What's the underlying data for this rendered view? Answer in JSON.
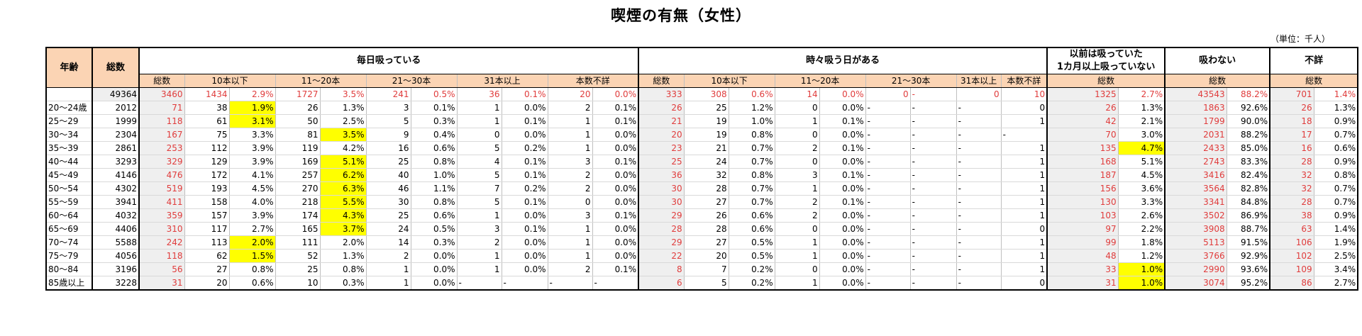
{
  "title": "喫煙の有無（女性）",
  "unit": "（単位：千人）",
  "headers": {
    "age": "年齢",
    "total": "総数",
    "daily": "毎日吸っている",
    "sometimes": "時々吸う日がある",
    "former_line1": "以前は吸っていた",
    "former_line2": "1カ月以上吸っていない",
    "never": "吸わない",
    "unknown": "不詳",
    "sub_total": "総数",
    "s_le10": "10本以下",
    "s_11_20": "11～20本",
    "s_21_30": "21～30本",
    "s_31": "31本以上",
    "s_unk": "本数不詳"
  },
  "rows": [
    {
      "age": "",
      "cells": [
        "49364",
        "3460",
        "1434",
        "2.9%",
        "1727",
        "3.5%",
        "241",
        "0.5%",
        "36",
        "0.1%",
        "20",
        "0.0%",
        "333",
        "308",
        "0.6%",
        "14",
        "0.0%",
        "0",
        "-",
        "0",
        "10",
        "1325",
        "2.7%",
        "43543",
        "88.2%",
        "701",
        "1.4%"
      ],
      "hl": []
    },
    {
      "age": "20～24歳",
      "cells": [
        "2012",
        "71",
        "38",
        "1.9%",
        "26",
        "1.3%",
        "3",
        "0.1%",
        "1",
        "0.0%",
        "2",
        "0.1%",
        "26",
        "25",
        "1.2%",
        "0",
        "0.0%",
        "-",
        "-",
        "-",
        "0",
        "26",
        "1.3%",
        "1863",
        "92.6%",
        "26",
        "1.3%"
      ],
      "hl": [
        3
      ]
    },
    {
      "age": "25～29",
      "cells": [
        "1999",
        "118",
        "61",
        "3.1%",
        "50",
        "2.5%",
        "5",
        "0.3%",
        "1",
        "0.1%",
        "1",
        "0.1%",
        "21",
        "19",
        "1.0%",
        "1",
        "0.1%",
        "-",
        "-",
        "-",
        "1",
        "42",
        "2.1%",
        "1799",
        "90.0%",
        "18",
        "0.9%"
      ],
      "hl": [
        3
      ]
    },
    {
      "age": "30～34",
      "cells": [
        "2304",
        "167",
        "75",
        "3.3%",
        "81",
        "3.5%",
        "9",
        "0.4%",
        "0",
        "0.0%",
        "1",
        "0.0%",
        "20",
        "19",
        "0.8%",
        "0",
        "0.0%",
        "-",
        "-",
        "-",
        "-",
        "70",
        "3.0%",
        "2031",
        "88.2%",
        "17",
        "0.7%"
      ],
      "hl": [
        5
      ]
    },
    {
      "age": "35～39",
      "cells": [
        "2861",
        "253",
        "112",
        "3.9%",
        "119",
        "4.2%",
        "16",
        "0.6%",
        "5",
        "0.2%",
        "1",
        "0.0%",
        "23",
        "21",
        "0.7%",
        "2",
        "0.1%",
        "-",
        "-",
        "-",
        "1",
        "135",
        "4.7%",
        "2433",
        "85.0%",
        "16",
        "0.6%"
      ],
      "hl": [
        22
      ]
    },
    {
      "age": "40～44",
      "cells": [
        "3293",
        "329",
        "129",
        "3.9%",
        "169",
        "5.1%",
        "25",
        "0.8%",
        "4",
        "0.1%",
        "3",
        "0.1%",
        "25",
        "24",
        "0.7%",
        "0",
        "0.0%",
        "-",
        "-",
        "-",
        "1",
        "168",
        "5.1%",
        "2743",
        "83.3%",
        "28",
        "0.9%"
      ],
      "hl": [
        5
      ]
    },
    {
      "age": "45～49",
      "cells": [
        "4146",
        "476",
        "172",
        "4.1%",
        "257",
        "6.2%",
        "40",
        "1.0%",
        "5",
        "0.1%",
        "2",
        "0.0%",
        "36",
        "32",
        "0.8%",
        "3",
        "0.1%",
        "-",
        "-",
        "-",
        "1",
        "187",
        "4.5%",
        "3416",
        "82.4%",
        "32",
        "0.8%"
      ],
      "hl": [
        5
      ]
    },
    {
      "age": "50～54",
      "cells": [
        "4302",
        "519",
        "193",
        "4.5%",
        "270",
        "6.3%",
        "46",
        "1.1%",
        "7",
        "0.2%",
        "2",
        "0.0%",
        "30",
        "28",
        "0.7%",
        "1",
        "0.0%",
        "-",
        "-",
        "-",
        "1",
        "156",
        "3.6%",
        "3564",
        "82.8%",
        "32",
        "0.7%"
      ],
      "hl": [
        5
      ]
    },
    {
      "age": "55～59",
      "cells": [
        "3941",
        "411",
        "158",
        "4.0%",
        "218",
        "5.5%",
        "30",
        "0.8%",
        "5",
        "0.1%",
        "0",
        "0.0%",
        "30",
        "27",
        "0.7%",
        "2",
        "0.1%",
        "-",
        "-",
        "-",
        "1",
        "130",
        "3.3%",
        "3341",
        "84.8%",
        "28",
        "0.7%"
      ],
      "hl": [
        5
      ]
    },
    {
      "age": "60～64",
      "cells": [
        "4032",
        "359",
        "157",
        "3.9%",
        "174",
        "4.3%",
        "25",
        "0.6%",
        "1",
        "0.0%",
        "3",
        "0.1%",
        "29",
        "26",
        "0.6%",
        "2",
        "0.0%",
        "-",
        "-",
        "-",
        "1",
        "103",
        "2.6%",
        "3502",
        "86.9%",
        "38",
        "0.9%"
      ],
      "hl": [
        5
      ]
    },
    {
      "age": "65～69",
      "cells": [
        "4406",
        "310",
        "117",
        "2.7%",
        "165",
        "3.7%",
        "24",
        "0.5%",
        "3",
        "0.1%",
        "1",
        "0.0%",
        "28",
        "28",
        "0.6%",
        "0",
        "0.0%",
        "-",
        "-",
        "-",
        "0",
        "97",
        "2.2%",
        "3908",
        "88.7%",
        "63",
        "1.4%"
      ],
      "hl": [
        5
      ]
    },
    {
      "age": "70～74",
      "cells": [
        "5588",
        "242",
        "113",
        "2.0%",
        "111",
        "2.0%",
        "14",
        "0.3%",
        "2",
        "0.0%",
        "1",
        "0.0%",
        "29",
        "27",
        "0.5%",
        "1",
        "0.0%",
        "-",
        "-",
        "-",
        "1",
        "99",
        "1.8%",
        "5113",
        "91.5%",
        "106",
        "1.9%"
      ],
      "hl": [
        3
      ]
    },
    {
      "age": "75～79",
      "cells": [
        "4056",
        "118",
        "62",
        "1.5%",
        "52",
        "1.3%",
        "2",
        "0.0%",
        "1",
        "0.0%",
        "1",
        "0.0%",
        "22",
        "20",
        "0.5%",
        "1",
        "0.0%",
        "-",
        "-",
        "-",
        "1",
        "48",
        "1.2%",
        "3766",
        "92.9%",
        "102",
        "2.5%"
      ],
      "hl": [
        3
      ]
    },
    {
      "age": "80～84",
      "cells": [
        "3196",
        "56",
        "27",
        "0.8%",
        "25",
        "0.8%",
        "1",
        "0.0%",
        "1",
        "0.0%",
        "2",
        "0.1%",
        "8",
        "7",
        "0.2%",
        "0",
        "0.0%",
        "-",
        "-",
        "-",
        "1",
        "33",
        "1.0%",
        "2990",
        "93.6%",
        "109",
        "3.4%"
      ],
      "hl": [
        22
      ]
    },
    {
      "age": "85歳以上",
      "cells": [
        "3228",
        "31",
        "20",
        "0.6%",
        "10",
        "0.3%",
        "1",
        "0.0%",
        "-",
        "-",
        "-",
        "-",
        "6",
        "5",
        "0.2%",
        "1",
        "0.0%",
        "-",
        "-",
        "-",
        "0",
        "31",
        "1.0%",
        "3074",
        "95.2%",
        "86",
        "2.7%"
      ],
      "hl": [
        22
      ]
    }
  ]
}
